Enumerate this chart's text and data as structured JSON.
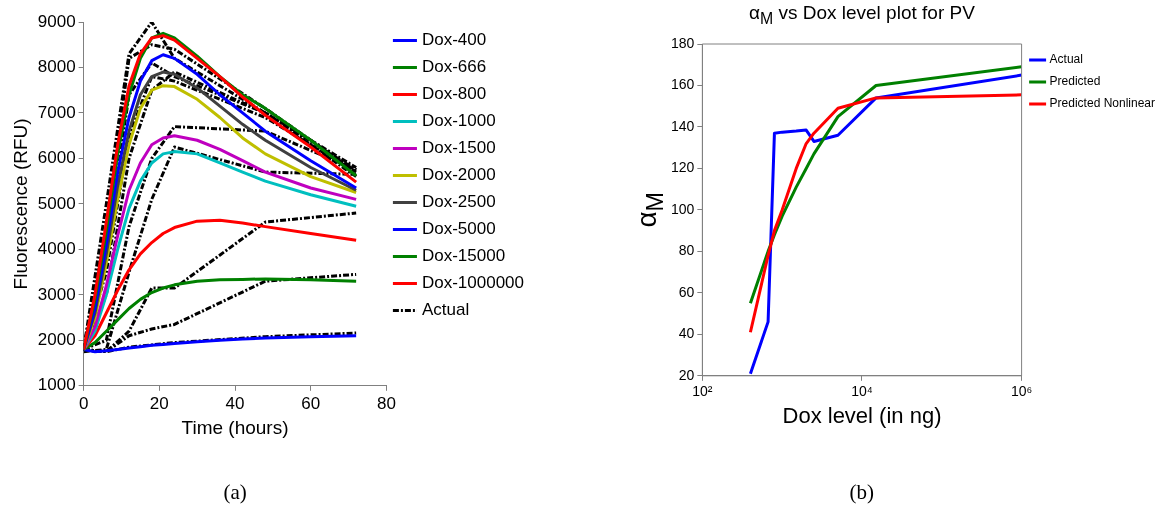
{
  "chart_data": [
    {
      "type": "line",
      "xlabel": "Time (hours)",
      "ylabel": "Fluorescence (RFU)",
      "xlim": [
        0,
        80
      ],
      "xticks": [
        0,
        20,
        40,
        60,
        80
      ],
      "ylim": [
        1000,
        9000
      ],
      "yticks": [
        1000,
        2000,
        3000,
        4000,
        5000,
        6000,
        7000,
        8000,
        9000
      ],
      "grid": false,
      "legend": "right",
      "marker": "none",
      "annotations": [
        "(a)"
      ],
      "x": [
        0,
        3,
        6,
        9,
        12,
        15,
        18,
        21,
        24,
        30,
        36,
        42,
        48,
        60,
        72
      ],
      "series": [
        {
          "name": "Dox-400",
          "color": "#0000ff",
          "line_style": "solid",
          "values": [
            1800,
            1750,
            1770,
            1800,
            1830,
            1860,
            1890,
            1910,
            1930,
            1970,
            2000,
            2030,
            2050,
            2080,
            2100
          ]
        },
        {
          "name": "Dox-666",
          "color": "#008000",
          "line_style": "solid",
          "values": [
            1800,
            1950,
            2200,
            2450,
            2700,
            2900,
            3050,
            3150,
            3220,
            3300,
            3330,
            3340,
            3350,
            3330,
            3300
          ]
        },
        {
          "name": "Dox-800",
          "color": "#ff0000",
          "line_style": "solid",
          "values": [
            1800,
            2100,
            2600,
            3100,
            3550,
            3900,
            4150,
            4350,
            4480,
            4620,
            4640,
            4580,
            4500,
            4350,
            4200
          ]
        },
        {
          "name": "Dox-1000",
          "color": "#00bfbf",
          "line_style": "solid",
          "values": [
            1800,
            2200,
            3000,
            4000,
            4900,
            5500,
            5900,
            6100,
            6150,
            6100,
            5900,
            5700,
            5500,
            5200,
            4950
          ]
        },
        {
          "name": "Dox-1500",
          "color": "#bf00bf",
          "line_style": "solid",
          "values": [
            1800,
            2300,
            3200,
            4300,
            5300,
            5900,
            6300,
            6450,
            6500,
            6400,
            6200,
            5950,
            5700,
            5350,
            5100
          ]
        },
        {
          "name": "Dox-2000",
          "color": "#bfbf00",
          "line_style": "solid",
          "values": [
            1800,
            2500,
            3700,
            5100,
            6300,
            7100,
            7500,
            7600,
            7580,
            7300,
            6900,
            6450,
            6100,
            5600,
            5250
          ]
        },
        {
          "name": "Dox-2500",
          "color": "#404040",
          "line_style": "solid",
          "values": [
            1800,
            2600,
            3900,
            5400,
            6600,
            7400,
            7800,
            7900,
            7850,
            7550,
            7150,
            6750,
            6400,
            5800,
            5300
          ]
        },
        {
          "name": "Dox-5000",
          "color": "#0000ff",
          "line_style": "solid",
          "values": [
            1800,
            2700,
            4100,
            5700,
            6900,
            7700,
            8150,
            8280,
            8200,
            7850,
            7400,
            7000,
            6600,
            5950,
            5350
          ]
        },
        {
          "name": "Dox-15000",
          "color": "#008000",
          "line_style": "solid",
          "values": [
            1800,
            2900,
            4400,
            6100,
            7400,
            8200,
            8650,
            8750,
            8650,
            8250,
            7800,
            7400,
            7100,
            6400,
            5620
          ]
        },
        {
          "name": "Dox-1000000",
          "color": "#ff0000",
          "line_style": "solid",
          "values": [
            1800,
            3000,
            4600,
            6300,
            7600,
            8300,
            8650,
            8700,
            8600,
            8200,
            7800,
            7350,
            6950,
            6250,
            5480
          ]
        },
        {
          "name": "Actual",
          "color": "#000000",
          "line_style": "dashed",
          "x": [
            0,
            6,
            12,
            18,
            24,
            48,
            72
          ],
          "values": [
            1800,
            1750,
            1850,
            1900,
            1950,
            2080,
            2160
          ]
        },
        {
          "color": "#000000",
          "line_style": "dashed",
          "x": [
            0,
            6,
            12,
            18,
            24,
            48,
            72
          ],
          "values": [
            1800,
            1750,
            2100,
            2250,
            2350,
            3300,
            3450
          ]
        },
        {
          "color": "#000000",
          "line_style": "dashed",
          "x": [
            0,
            6,
            12,
            18,
            24,
            48,
            72
          ],
          "values": [
            1800,
            1750,
            2200,
            3150,
            3150,
            4600,
            4800
          ]
        },
        {
          "color": "#000000",
          "line_style": "dashed",
          "x": [
            0,
            6,
            12,
            18,
            24,
            48,
            72
          ],
          "values": [
            1750,
            1800,
            3500,
            5100,
            6250,
            5700,
            5650
          ]
        },
        {
          "color": "#000000",
          "line_style": "dashed",
          "x": [
            0,
            6,
            12,
            18,
            24,
            48,
            72
          ],
          "values": [
            1800,
            2000,
            4500,
            6000,
            6700,
            6600,
            5750
          ]
        },
        {
          "color": "#000000",
          "line_style": "dashed",
          "x": [
            0,
            6,
            12,
            18,
            24,
            48,
            72
          ],
          "values": [
            1800,
            5000,
            8300,
            9000,
            8200,
            7000,
            5800
          ]
        },
        {
          "color": "#000000",
          "line_style": "dashed",
          "x": [
            0,
            6,
            12,
            18,
            24,
            48,
            72
          ],
          "values": [
            1800,
            4500,
            8200,
            8500,
            8400,
            7100,
            5700
          ]
        },
        {
          "color": "#000000",
          "line_style": "dashed",
          "x": [
            0,
            6,
            12,
            18,
            24,
            48,
            72
          ],
          "values": [
            1800,
            4000,
            7400,
            8100,
            7800,
            7000,
            5600
          ]
        },
        {
          "color": "#000000",
          "line_style": "dashed",
          "x": [
            0,
            6,
            12,
            18,
            24,
            48,
            72
          ],
          "values": [
            1800,
            3500,
            6500,
            7800,
            7700,
            6900,
            5700
          ]
        },
        {
          "color": "#000000",
          "line_style": "dashed",
          "x": [
            0,
            6,
            12,
            18,
            24,
            48,
            72
          ],
          "values": [
            1800,
            3000,
            6000,
            7500,
            7900,
            7000,
            5750
          ]
        }
      ]
    },
    {
      "type": "line",
      "title": "α$_{M}$ vs Dox level plot for PV",
      "xlabel": "Dox level (in ng)",
      "ylabel": "α$_{M}$",
      "log": "x",
      "xlim": [
        100,
        1000000
      ],
      "xticks": [
        {
          "value": 100,
          "label": "10²"
        },
        {
          "value": 10000,
          "label": "10⁴"
        },
        {
          "value": 1000000,
          "label": "10⁶"
        }
      ],
      "ylim": [
        20,
        180
      ],
      "yticks": [
        20,
        40,
        60,
        80,
        100,
        120,
        140,
        160,
        180
      ],
      "grid": false,
      "legend": "top right",
      "marker": "none",
      "annotations": [
        "(b)"
      ],
      "x": [
        400,
        666,
        800,
        1000,
        1500,
        2000,
        2500,
        5000,
        15000,
        1000000
      ],
      "series": [
        {
          "name": "Actual",
          "color": "#0000ff",
          "line_style": "solid",
          "values": [
            21,
            46,
            137,
            137.5,
            138,
            138.5,
            133,
            136,
            154,
            165
          ]
        },
        {
          "name": "Predicted",
          "color": "#008000",
          "line_style": "solid",
          "values": [
            55,
            80,
            88,
            97,
            111,
            120,
            127,
            145,
            160,
            169
          ]
        },
        {
          "name": "Predicted Nonlinear",
          "color": "#ff0000",
          "line_style": "solid",
          "values": [
            41,
            78,
            90,
            100,
            120,
            132,
            137,
            149,
            154,
            155.5
          ]
        }
      ]
    }
  ]
}
